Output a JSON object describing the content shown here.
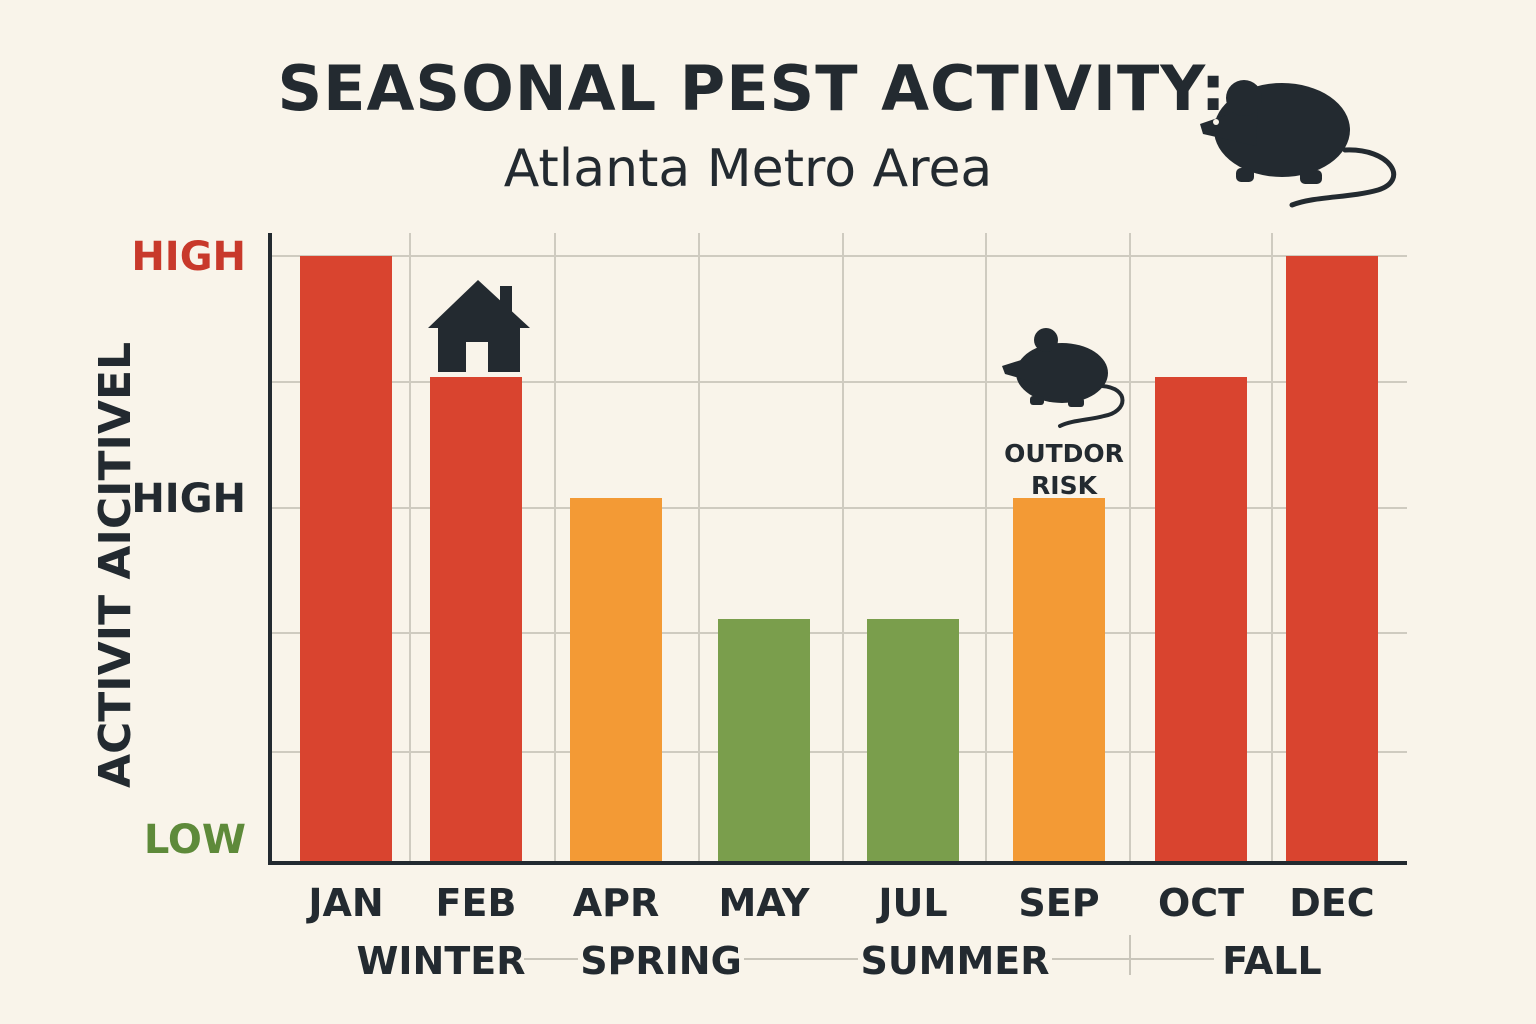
{
  "title": "SEASONAL PEST ACTIVITY:",
  "subtitle": "Atlanta Metro Area",
  "colors": {
    "high": "#d9442f",
    "medium": "#f39a35",
    "low": "#7a9e4c",
    "text": "#232a30",
    "background": "#f9f4ea"
  },
  "icons": [
    "rat-icon",
    "house-icon",
    "mouse-icon"
  ],
  "chart_data": {
    "type": "bar",
    "title": "SEASONAL PEST ACTIVITY:",
    "subtitle": "Atlanta Metro Area",
    "ylabel": "ACTIVIT AICITIVEL",
    "categories": [
      "JAN",
      "FEB",
      "APR",
      "MAY",
      "JUL",
      "SEP",
      "OCT",
      "DEC"
    ],
    "values": [
      5,
      4,
      3,
      2,
      2,
      3,
      4,
      5
    ],
    "levels": [
      "high",
      "high",
      "medium",
      "low",
      "low",
      "medium",
      "high",
      "high"
    ],
    "ylim": [
      0,
      5
    ],
    "y_level_labels": [
      {
        "label": "HIGH",
        "value": 5,
        "color": "#c8392b"
      },
      {
        "label": "HIGH",
        "value": 3,
        "color": "#232a30"
      },
      {
        "label": "LOW",
        "value": 0,
        "color": "#5e8a3a"
      }
    ],
    "seasons": [
      "WINTER",
      "SPRING",
      "SUMMER",
      "FALL"
    ],
    "annotations": [
      {
        "category": "FEB",
        "icon": "house-icon"
      },
      {
        "category": "SEP",
        "icon": "mouse-icon",
        "text_line1": "OUTDOR",
        "text_line2": "RISK"
      }
    ],
    "grid": true
  }
}
